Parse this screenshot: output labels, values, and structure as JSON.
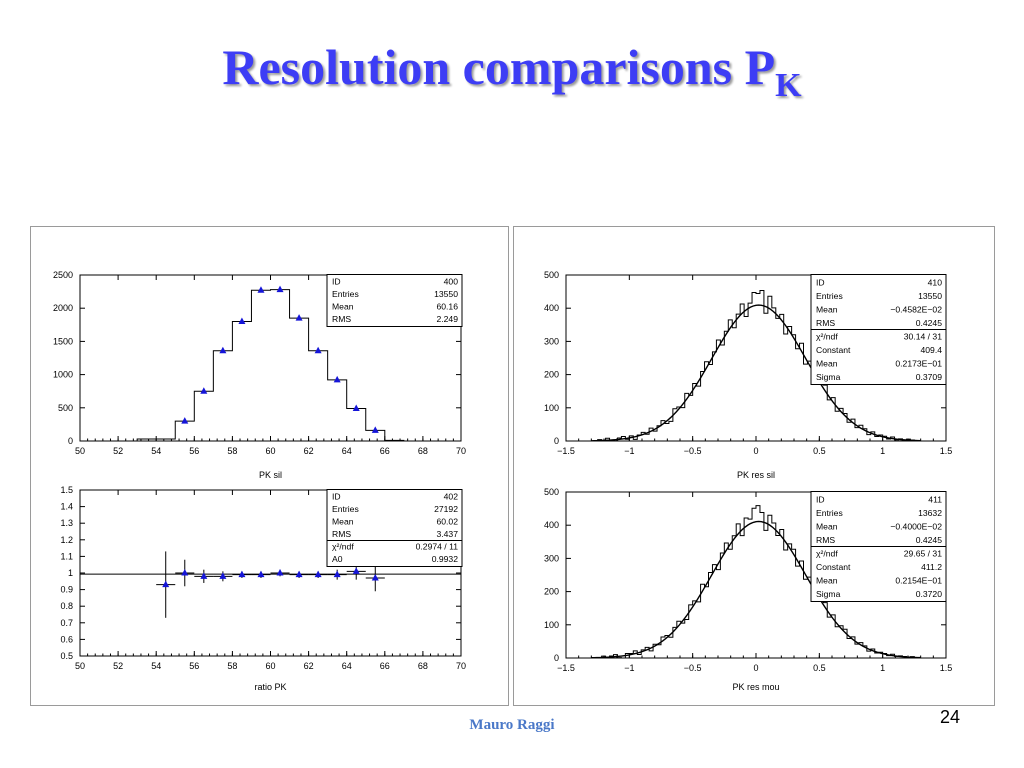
{
  "slide": {
    "title_main": "Resolution comparisons P",
    "title_sub": "K",
    "footer": "Mauro Raggi",
    "page_number": "24"
  },
  "chart_data": [
    {
      "id": "pk-sil",
      "type": "histogram",
      "xlabel": "PK sil",
      "xlim": [
        50,
        70
      ],
      "ylim": [
        0,
        2500
      ],
      "xticks": [
        50,
        52,
        54,
        56,
        58,
        60,
        62,
        64,
        66,
        68,
        70
      ],
      "yticks": [
        0,
        500,
        1000,
        1500,
        2000,
        2500
      ],
      "bins": {
        "edges": [
          53,
          54,
          55,
          56,
          57,
          58,
          59,
          60,
          61,
          62,
          63,
          64,
          65,
          66,
          67
        ],
        "values": [
          30,
          30,
          300,
          750,
          1360,
          1800,
          2270,
          2280,
          1850,
          1360,
          920,
          490,
          160,
          10
        ]
      },
      "markers": {
        "x": [
          55.5,
          56.5,
          57.5,
          58.5,
          59.5,
          60.5,
          61.5,
          62.5,
          63.5,
          64.5,
          65.5
        ],
        "y": [
          300,
          750,
          1360,
          1800,
          2270,
          2280,
          1850,
          1360,
          920,
          490,
          160
        ]
      },
      "stats": [
        [
          "ID",
          "400"
        ],
        [
          "Entries",
          "13550"
        ],
        [
          "Mean",
          "60.16"
        ],
        [
          "RMS",
          "2.249"
        ]
      ]
    },
    {
      "id": "ratio-pk",
      "type": "scatter",
      "xlabel": "ratio PK",
      "xlim": [
        50,
        70
      ],
      "ylim": [
        0.5,
        1.5
      ],
      "xticks": [
        50,
        52,
        54,
        56,
        58,
        60,
        62,
        64,
        66,
        68,
        70
      ],
      "yticks": [
        0.5,
        0.6,
        0.7,
        0.8,
        0.9,
        1,
        1.1,
        1.2,
        1.3,
        1.4,
        1.5
      ],
      "yticklabels": [
        "0.5",
        "0.6",
        "0.7",
        "0.8",
        "0.9",
        "1",
        "1.1",
        "1.2",
        "1.3",
        "1.4",
        "1.5"
      ],
      "fit_line": 0.9932,
      "points": {
        "x": [
          54.5,
          55.5,
          56.5,
          57.5,
          58.5,
          59.5,
          60.5,
          61.5,
          62.5,
          63.5,
          64.5,
          65.5
        ],
        "y": [
          0.93,
          1.0,
          0.98,
          0.98,
          0.99,
          0.99,
          1.0,
          0.99,
          0.99,
          0.99,
          1.01,
          0.97
        ],
        "err": [
          0.2,
          0.08,
          0.04,
          0.03,
          0.02,
          0.02,
          0.02,
          0.02,
          0.02,
          0.03,
          0.05,
          0.08
        ]
      },
      "stats": [
        [
          "ID",
          "402"
        ],
        [
          "Entries",
          "27192"
        ],
        [
          "Mean",
          "60.02"
        ],
        [
          "RMS",
          "3.437"
        ],
        [
          "χ²/ndf",
          "0.2974  /  11"
        ],
        [
          "A0",
          "0.9932"
        ]
      ]
    },
    {
      "id": "pk-res-sil",
      "type": "histogram",
      "xlabel": "PK res sil",
      "xlim": [
        -1.5,
        1.5
      ],
      "ylim": [
        0,
        500
      ],
      "xticks": [
        -1.5,
        -1,
        -0.5,
        0,
        0.5,
        1,
        1.5
      ],
      "xticklabels": [
        "−1.5",
        "−1",
        "−0.5",
        "0",
        "0.5",
        "1",
        "1.5"
      ],
      "yticks": [
        0,
        100,
        200,
        300,
        400,
        500
      ],
      "gaussian": {
        "constant": 409.4,
        "mean": 0.02173,
        "sigma": 0.3709
      },
      "bin_noise": [
        3,
        -5,
        6,
        -2,
        -6,
        4,
        7,
        -3,
        5,
        -8,
        2,
        6,
        -4,
        9,
        -6,
        3,
        10,
        -8,
        -12,
        14,
        6,
        -10,
        17,
        -6,
        12,
        -15,
        9,
        18,
        -11,
        6,
        21,
        -14,
        8,
        24,
        -16,
        10,
        28,
        -20,
        13,
        40,
        35,
        45,
        -20,
        38,
        12,
        -8,
        18,
        -25,
        15,
        9,
        -13,
        24,
        -18,
        12,
        21,
        -15,
        8,
        18,
        -9,
        14,
        -12,
        10,
        7,
        -8,
        11,
        -6,
        9,
        5,
        -7,
        6,
        -4,
        4,
        3,
        -3,
        5,
        -2,
        2,
        -1,
        3,
        1
      ],
      "stats": [
        [
          "ID",
          "410"
        ],
        [
          "Entries",
          "13550"
        ],
        [
          "Mean",
          "−0.4582E−02"
        ],
        [
          "RMS",
          "0.4245"
        ],
        [
          "χ²/ndf",
          "30.14  /  31"
        ],
        [
          "Constant",
          "409.4"
        ],
        [
          "Mean",
          "0.2173E−01"
        ],
        [
          "Sigma",
          "0.3709"
        ]
      ]
    },
    {
      "id": "pk-res-mou",
      "type": "histogram",
      "xlabel": "PK res mou",
      "xlim": [
        -1.5,
        1.5
      ],
      "ylim": [
        0,
        500
      ],
      "xticks": [
        -1.5,
        -1,
        -0.5,
        0,
        0.5,
        1,
        1.5
      ],
      "xticklabels": [
        "−1.5",
        "−1",
        "−0.5",
        "0",
        "0.5",
        "1",
        "1.5"
      ],
      "yticks": [
        0,
        100,
        200,
        300,
        400,
        500
      ],
      "gaussian": {
        "constant": 411.2,
        "mean": 0.02154,
        "sigma": 0.372
      },
      "bin_noise": [
        -2,
        4,
        -5,
        3,
        6,
        -4,
        -7,
        5,
        3,
        8,
        -6,
        4,
        7,
        -9,
        5,
        -4,
        11,
        6,
        -10,
        8,
        13,
        -7,
        -12,
        15,
        9,
        -13,
        20,
        -8,
        14,
        17,
        -19,
        11,
        22,
        -15,
        9,
        30,
        -18,
        25,
        14,
        42,
        48,
        28,
        -22,
        30,
        16,
        -10,
        22,
        -24,
        12,
        15,
        -16,
        20,
        -14,
        13,
        19,
        -12,
        10,
        15,
        -11,
        12,
        -9,
        8,
        10,
        -7,
        8,
        -5,
        7,
        4,
        -6,
        5,
        -3,
        3,
        2,
        -2,
        4,
        -1,
        2,
        1,
        -1,
        2
      ],
      "stats": [
        [
          "ID",
          "411"
        ],
        [
          "Entries",
          "13632"
        ],
        [
          "Mean",
          "−0.4000E−02"
        ],
        [
          "RMS",
          "0.4245"
        ],
        [
          "χ²/ndf",
          "29.65  /  31"
        ],
        [
          "Constant",
          "411.2"
        ],
        [
          "Mean",
          "0.2154E−01"
        ],
        [
          "Sigma",
          "0.3720"
        ]
      ]
    }
  ]
}
